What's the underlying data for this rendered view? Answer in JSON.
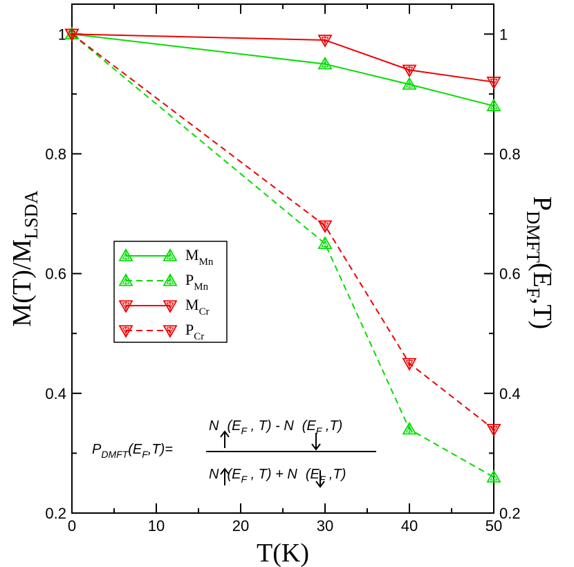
{
  "chart_data": {
    "type": "line",
    "xlabel": "T(K)",
    "ylabel_left": {
      "main": "M(T)/M",
      "sub": "LSDA"
    },
    "ylabel_right": {
      "main": "P",
      "sub": "DMFT",
      "rest1": "(E",
      "sub2": "F",
      "rest2": ",T)"
    },
    "xlim": [
      0,
      50
    ],
    "ylim": [
      0.2,
      1.05
    ],
    "x_ticks": [
      0,
      10,
      20,
      30,
      40,
      50
    ],
    "x_tick_labels": [
      "0",
      "10",
      "20",
      "30",
      "40",
      "50"
    ],
    "y_ticks": [
      0.2,
      0.4,
      0.6,
      0.8,
      1.0
    ],
    "y_tick_labels": [
      "0.2",
      "0.4",
      "0.6",
      "0.8",
      "1"
    ],
    "legend_position": "center-left",
    "grid": false,
    "series": [
      {
        "name": "M",
        "sub": "Mn",
        "color": "#00dd00",
        "dash": "solid",
        "marker": "triangle-up",
        "x": [
          0,
          30,
          40,
          50
        ],
        "y": [
          1.0,
          0.95,
          0.916,
          0.88
        ]
      },
      {
        "name": "P",
        "sub": "Mn",
        "color": "#00dd00",
        "dash": "dashed",
        "marker": "triangle-up",
        "x": [
          0,
          30,
          40,
          50
        ],
        "y": [
          1.0,
          0.65,
          0.34,
          0.26
        ]
      },
      {
        "name": "M",
        "sub": "Cr",
        "color": "#ee0000",
        "dash": "solid",
        "marker": "triangle-down",
        "x": [
          0,
          30,
          40,
          50
        ],
        "y": [
          1.0,
          0.99,
          0.94,
          0.92
        ]
      },
      {
        "name": "P",
        "sub": "Cr",
        "color": "#ee0000",
        "dash": "dashed",
        "marker": "triangle-down",
        "x": [
          0,
          30,
          40,
          50
        ],
        "y": [
          1.0,
          0.68,
          0.45,
          0.34
        ]
      }
    ],
    "annotation": {
      "lhs": {
        "p": "P",
        "p_sub": "DMFT",
        "mid": "(E",
        "e_sub": "F",
        "end": ",T)="
      },
      "numerator": {
        "n1": "N",
        "t1": "(E",
        "f1": "F",
        "m1": " , T) - N",
        "t2": "(E",
        "f2": "F",
        "m2": " ,T)"
      },
      "denominator": {
        "n1": "N",
        "t1": "(E",
        "f1": "F",
        "m1": " , T) + N",
        "t2": "(E",
        "f2": "F",
        "m2": " ,T)"
      }
    }
  }
}
